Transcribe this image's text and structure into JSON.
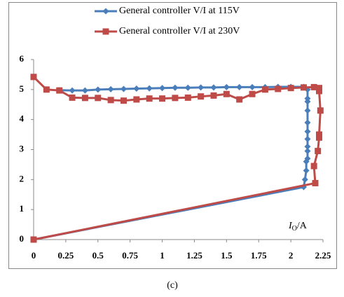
{
  "chart_data": {
    "type": "line",
    "caption": "(c)",
    "xlabel": [
      "I",
      "O",
      "/A"
    ],
    "xlim": [
      0,
      2.25
    ],
    "xticks": [
      0,
      0.25,
      0.5,
      0.75,
      1,
      1.25,
      1.5,
      1.75,
      2,
      2.25
    ],
    "ylim": [
      0,
      6
    ],
    "yticks": [
      0,
      1,
      2,
      3,
      4,
      5,
      6
    ],
    "grid": false,
    "legend": "top",
    "series": [
      {
        "name": "General controller V/I at 115V",
        "color": "#4a7ebb",
        "marker": "diamond",
        "x": [
          0.2,
          0.3,
          0.4,
          0.5,
          0.6,
          0.7,
          0.8,
          0.9,
          1.0,
          1.1,
          1.2,
          1.3,
          1.4,
          1.5,
          1.6,
          1.7,
          1.8,
          1.9,
          2.0,
          2.1,
          2.13,
          2.13,
          2.13,
          2.13,
          2.13,
          2.13,
          2.13,
          2.13,
          2.13,
          2.13,
          2.12,
          2.12,
          2.11,
          2.1,
          0
        ],
        "values": [
          4.98,
          4.97,
          4.97,
          5.0,
          5.01,
          5.02,
          5.03,
          5.04,
          5.05,
          5.06,
          5.06,
          5.07,
          5.07,
          5.08,
          5.08,
          5.08,
          5.08,
          5.09,
          5.09,
          5.09,
          5.0,
          4.7,
          4.6,
          4.3,
          3.9,
          3.6,
          3.35,
          3.1,
          2.95,
          2.7,
          2.6,
          2.3,
          2.0,
          1.75,
          0
        ]
      },
      {
        "name": "General controller V/I at 230V",
        "color": "#be4b48",
        "marker": "square",
        "x": [
          0,
          0.1,
          0.2,
          0.3,
          0.4,
          0.5,
          0.6,
          0.7,
          0.8,
          0.9,
          1.0,
          1.1,
          1.2,
          1.3,
          1.4,
          1.5,
          1.6,
          1.7,
          1.8,
          1.9,
          2.0,
          2.1,
          2.18,
          2.22,
          2.22,
          2.23,
          2.22,
          2.22,
          2.21,
          2.18,
          2.19,
          0
        ],
        "values": [
          5.42,
          5.0,
          4.97,
          4.73,
          4.72,
          4.72,
          4.65,
          4.63,
          4.67,
          4.7,
          4.7,
          4.72,
          4.73,
          4.77,
          4.8,
          4.85,
          4.67,
          4.85,
          5.0,
          5.02,
          5.05,
          5.07,
          5.08,
          5.05,
          4.95,
          4.3,
          3.5,
          3.4,
          2.95,
          2.45,
          1.88,
          0
        ]
      }
    ]
  }
}
